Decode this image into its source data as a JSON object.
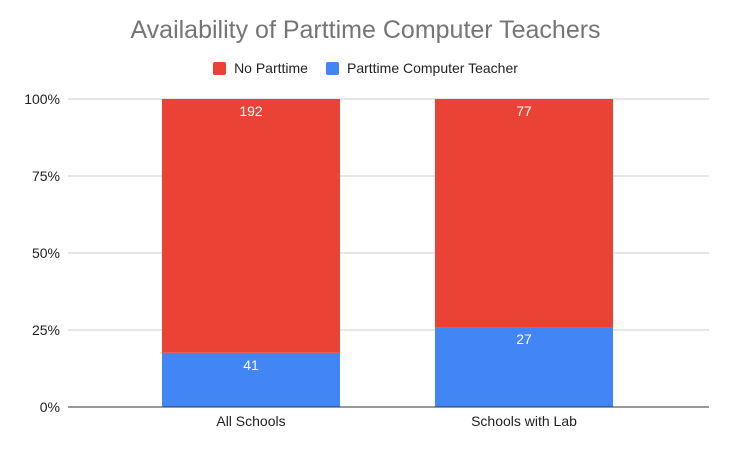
{
  "chart_data": {
    "type": "bar",
    "stacked": true,
    "stack_mode": "percent",
    "title": "Availability of Parttime Computer Teachers",
    "categories": [
      "All Schools",
      "Schools with Lab"
    ],
    "series": [
      {
        "name": "Parttime Computer Teacher",
        "values": [
          41,
          27
        ],
        "color": "#4285f4"
      },
      {
        "name": "No Parttime",
        "values": [
          192,
          77
        ],
        "color": "#ea4335"
      }
    ],
    "legend": {
      "placement": "top",
      "order": [
        "No Parttime",
        "Parttime Computer Teacher"
      ]
    },
    "yaxis": {
      "ticks": [
        "0%",
        "25%",
        "50%",
        "75%",
        "100%"
      ],
      "tick_values": [
        0,
        0.25,
        0.5,
        0.75,
        1
      ],
      "ylim": [
        0,
        1
      ]
    },
    "grid": true,
    "colors": {
      "grid": "#cccccc",
      "axis": "#333333"
    }
  }
}
